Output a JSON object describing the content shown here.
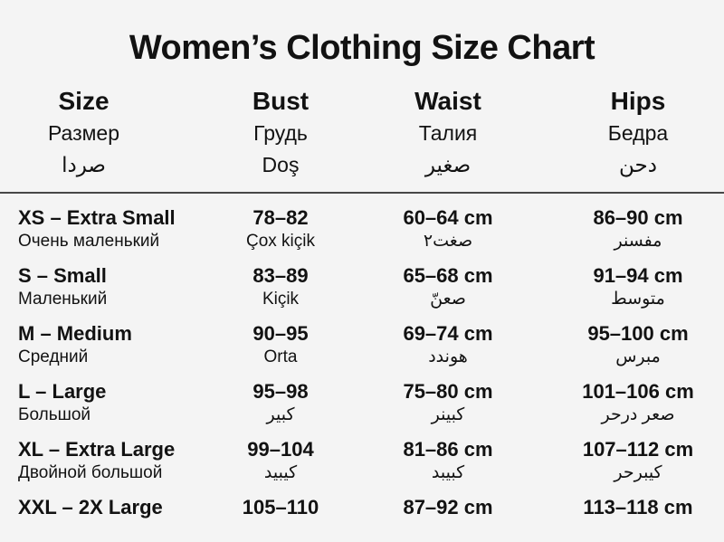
{
  "page": {
    "title": "Women’s Clothing Size Chart"
  },
  "colors": {
    "background": "#f4f4f4",
    "text": "#121212",
    "divider": "#474747"
  },
  "table": {
    "headers": [
      {
        "primary": "Size",
        "secondary": "Размер",
        "tertiary": "صردا"
      },
      {
        "primary": "Bust",
        "secondary": "Грудь",
        "tertiary": "Doş"
      },
      {
        "primary": "Waist",
        "secondary": "Талия",
        "tertiary": "صغير"
      },
      {
        "primary": "Hips",
        "secondary": "Бедра",
        "tertiary": "دحن"
      }
    ],
    "rows": [
      {
        "size": "XS – Extra Small",
        "size_sub": "Очень маленький",
        "bust": "78–82",
        "bust_sub": "Çox kiçik",
        "waist": "60–64 cm",
        "waist_sub": "صغت٢",
        "hips": "86–90 cm",
        "hips_sub": "مفسنر"
      },
      {
        "size": "S – Small",
        "size_sub": "Маленький",
        "bust": "83–89",
        "bust_sub": "Kiçik",
        "waist": "65–68 cm",
        "waist_sub": "صعنّ",
        "hips": "91–94 cm",
        "hips_sub": "متوسط"
      },
      {
        "size": "M – Medium",
        "size_sub": "Средний",
        "bust": "90–95",
        "bust_sub": "Orta",
        "waist": "69–74 cm",
        "waist_sub": "هوندد",
        "hips": "95–100 cm",
        "hips_sub": "مبرس"
      },
      {
        "size": "L – Large",
        "size_sub": "Большой",
        "bust": "95–98",
        "bust_sub": "كبير",
        "waist": "75–80 cm",
        "waist_sub": "كبينر",
        "hips": "101–106 cm",
        "hips_sub": "صعر درحر"
      },
      {
        "size": "XL – Extra Large",
        "size_sub": "Двойной большой",
        "bust": "99–104",
        "bust_sub": "كيبيد",
        "waist": "81–86 cm",
        "waist_sub": "كبيبد",
        "hips": "107–112 cm",
        "hips_sub": "كيبرحر"
      },
      {
        "size": "XXL – 2X Large",
        "size_sub": "",
        "bust": "105–110",
        "bust_sub": "",
        "waist": "87–92 cm",
        "waist_sub": "",
        "hips": "113–118 cm",
        "hips_sub": ""
      }
    ]
  }
}
